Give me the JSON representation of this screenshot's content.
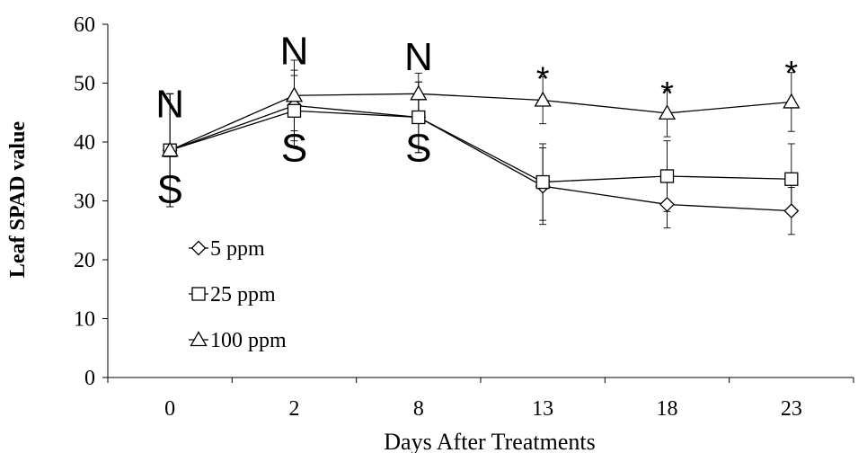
{
  "chart_data": {
    "type": "line",
    "title": "",
    "xlabel": "Days After Treatments",
    "ylabel": "Leaf SPAD value",
    "categories": [
      "0",
      "2",
      "8",
      "13",
      "18",
      "23"
    ],
    "ylim": [
      0,
      60
    ],
    "yticks": [
      "0",
      "10",
      "20",
      "30",
      "40",
      "50",
      "60"
    ],
    "grid": false,
    "legend_position": "left-middle",
    "series": [
      {
        "name": "5 ppm",
        "marker": "diamond",
        "values": [
          38.6,
          46.2,
          44.2,
          32.5,
          29.4,
          28.3
        ],
        "errors": [
          9.6,
          6.0,
          6.0,
          6.5,
          4.0,
          4.0
        ]
      },
      {
        "name": "25 ppm",
        "marker": "square",
        "values": [
          38.6,
          45.3,
          44.2,
          33.2,
          34.2,
          33.7
        ],
        "errors": [
          9.6,
          6.0,
          6.0,
          6.5,
          6.0,
          6.0
        ]
      },
      {
        "name": "100 ppm",
        "marker": "triangle",
        "values": [
          38.6,
          47.9,
          48.2,
          47.1,
          44.9,
          46.8
        ],
        "errors": [
          9.6,
          6.0,
          3.5,
          4.0,
          4.0,
          5.0
        ]
      }
    ],
    "annotations": [
      {
        "text": "N",
        "category_index": 0,
        "y": 46.5,
        "size": "large"
      },
      {
        "text": "S",
        "category_index": 0,
        "y": 32.0,
        "size": "large"
      },
      {
        "text": "N",
        "category_index": 1,
        "y": 55.5,
        "size": "large"
      },
      {
        "text": "S",
        "category_index": 1,
        "y": 39.0,
        "size": "large"
      },
      {
        "text": "N",
        "category_index": 2,
        "y": 54.5,
        "size": "large"
      },
      {
        "text": "S",
        "category_index": 2,
        "y": 39.0,
        "size": "large"
      },
      {
        "text": "*",
        "category_index": 3,
        "y": 51.5,
        "size": "medium"
      },
      {
        "text": "*",
        "category_index": 4,
        "y": 49.0,
        "size": "medium"
      },
      {
        "text": "*",
        "category_index": 5,
        "y": 52.5,
        "size": "medium"
      }
    ]
  }
}
